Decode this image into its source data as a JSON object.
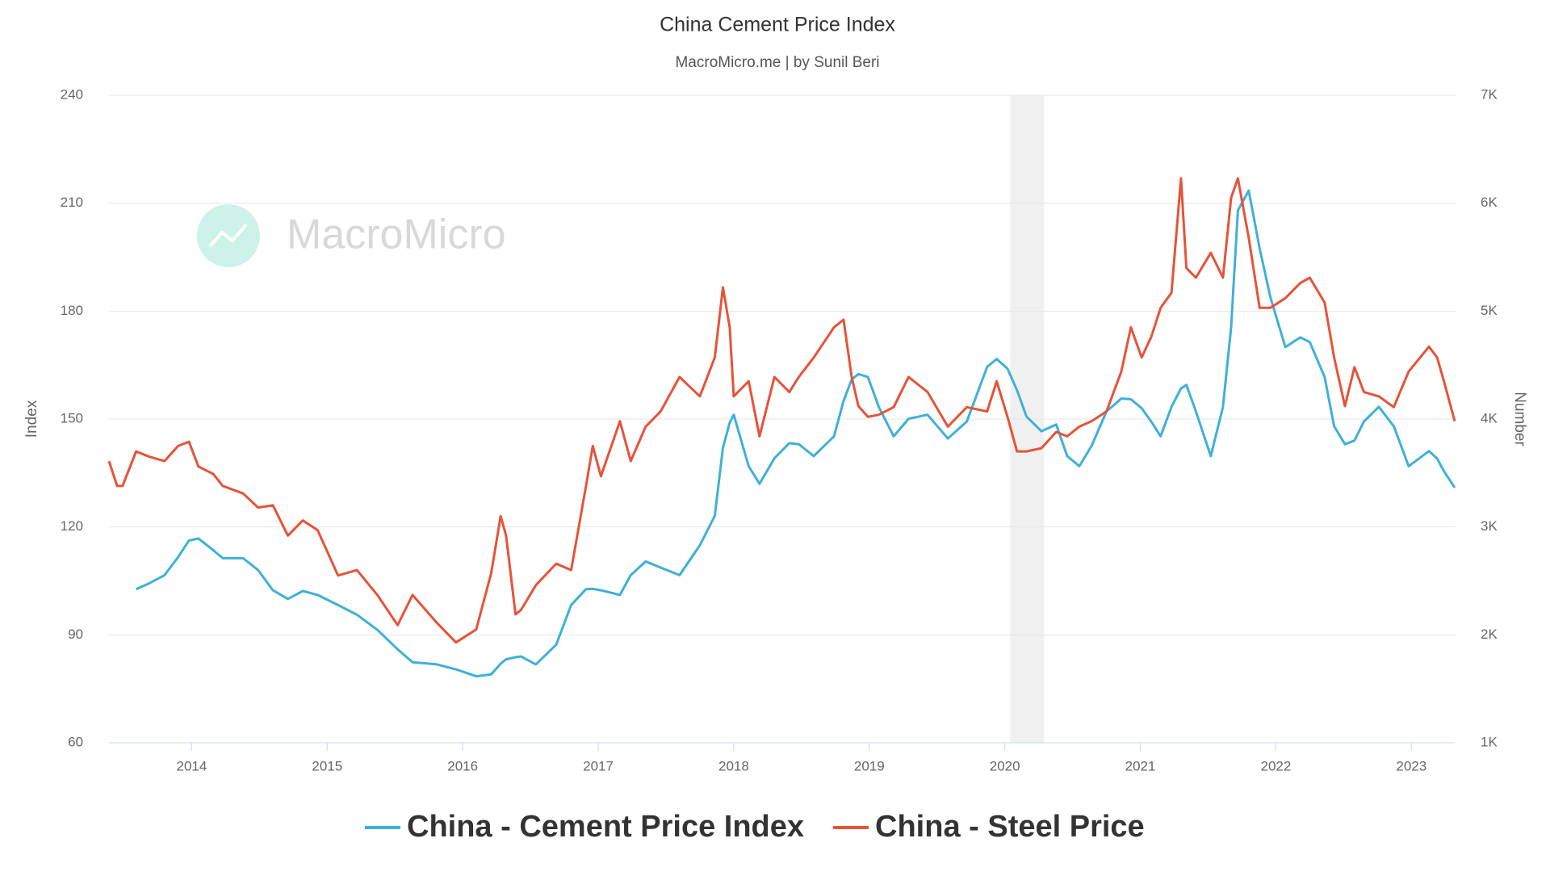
{
  "chart_data": {
    "type": "line",
    "title": "China Cement Price Index",
    "subtitle": "MacroMicro.me | by Sunil Beri",
    "watermark": "MacroMicro",
    "y_label": "Index",
    "y2_label": "Number",
    "x": [
      2013.39,
      2013.45,
      2013.49,
      2013.59,
      2013.69,
      2013.8,
      2013.9,
      2013.98,
      2014.05,
      2014.16,
      2014.23,
      2014.38,
      2014.49,
      2014.6,
      2014.71,
      2014.82,
      2014.93,
      2015.08,
      2015.22,
      2015.37,
      2015.52,
      2015.63,
      2015.81,
      2015.95,
      2016.1,
      2016.21,
      2016.28,
      2016.32,
      2016.39,
      2016.43,
      2016.54,
      2016.69,
      2016.8,
      2016.91,
      2016.96,
      2017.02,
      2017.16,
      2017.24,
      2017.35,
      2017.46,
      2017.6,
      2017.75,
      2017.86,
      2017.92,
      2017.97,
      2018.0,
      2018.11,
      2018.19,
      2018.3,
      2018.41,
      2018.48,
      2018.59,
      2018.74,
      2018.81,
      2018.87,
      2018.92,
      2018.99,
      2019.07,
      2019.18,
      2019.29,
      2019.43,
      2019.58,
      2019.72,
      2019.87,
      2019.94,
      2020.02,
      2020.09,
      2020.16,
      2020.27,
      2020.38,
      2020.46,
      2020.55,
      2020.64,
      2020.75,
      2020.86,
      2020.93,
      2021.01,
      2021.08,
      2021.15,
      2021.23,
      2021.3,
      2021.34,
      2021.41,
      2021.52,
      2021.61,
      2021.67,
      2021.72,
      2021.8,
      2021.88,
      2021.96,
      2022.07,
      2022.18,
      2022.25,
      2022.36,
      2022.43,
      2022.51,
      2022.58,
      2022.65,
      2022.76,
      2022.87,
      2022.98,
      2023.13,
      2023.19,
      2023.24,
      2023.32
    ],
    "series": [
      {
        "name": "China - Cement Price Index",
        "color": "#3fb0d8",
        "axis": "y",
        "values": [
          null,
          null,
          null,
          102.7,
          104.4,
          106.6,
          111.6,
          116.2,
          116.8,
          113.5,
          111.3,
          111.3,
          108,
          102.4,
          100,
          102.2,
          101.1,
          98.3,
          95.6,
          91.4,
          86,
          82.4,
          81.8,
          80.4,
          78.5,
          79,
          82,
          83.2,
          83.8,
          84,
          81.8,
          87.3,
          98.3,
          102.7,
          102.8,
          102.4,
          101.1,
          106.6,
          110.4,
          108.7,
          106.6,
          114.9,
          123.1,
          142,
          149,
          151.2,
          136.9,
          132,
          139.1,
          143.3,
          143,
          139.7,
          145.2,
          155,
          161,
          162.5,
          161.7,
          153.4,
          145.2,
          150.1,
          151.2,
          144.6,
          149.3,
          164.5,
          166.7,
          164,
          158,
          150.7,
          146.6,
          148.5,
          139.7,
          136.9,
          142.5,
          152.1,
          155.7,
          155.5,
          153,
          149.3,
          145.2,
          153.4,
          158.5,
          159.5,
          152.1,
          139.7,
          153.4,
          175.5,
          208,
          213.5,
          197.5,
          183.8,
          170,
          172.7,
          171.4,
          161.7,
          148,
          143,
          144,
          149.3,
          153.4,
          148,
          136.9,
          141.1,
          139,
          135.5,
          130.9
        ]
      },
      {
        "name": "China - Steel Price",
        "color": "#e5533a",
        "axis": "y2",
        "values": [
          3610,
          3380,
          3380,
          3700,
          3650,
          3610,
          3750,
          3790,
          3560,
          3490,
          3380,
          3310,
          3180,
          3200,
          2920,
          3060,
          2970,
          2550,
          2600,
          2370,
          2090,
          2370,
          2110,
          1930,
          2050,
          2570,
          3100,
          2920,
          2190,
          2230,
          2460,
          2660,
          2600,
          3380,
          3750,
          3470,
          3980,
          3610,
          3930,
          4070,
          4390,
          4210,
          4570,
          5220,
          4850,
          4210,
          4350,
          3840,
          4390,
          4250,
          4390,
          4570,
          4850,
          4920,
          4390,
          4120,
          4020,
          4040,
          4110,
          4390,
          4250,
          3930,
          4110,
          4070,
          4350,
          4020,
          3700,
          3700,
          3730,
          3880,
          3840,
          3930,
          3980,
          4070,
          4440,
          4850,
          4570,
          4760,
          5030,
          5170,
          6230,
          5400,
          5310,
          5540,
          5310,
          6050,
          6230,
          5680,
          5030,
          5030,
          5120,
          5260,
          5310,
          5080,
          4570,
          4120,
          4480,
          4250,
          4210,
          4110,
          4440,
          4670,
          4570,
          4350,
          3980
        ]
      }
    ],
    "xlim": [
      2013.39,
      2023.32
    ],
    "xticks": [
      2014,
      2015,
      2016,
      2017,
      2018,
      2019,
      2020,
      2021,
      2022,
      2023
    ],
    "ylim": [
      60,
      240
    ],
    "yticks": [
      60,
      90,
      120,
      150,
      180,
      210,
      240
    ],
    "y2lim": [
      1000,
      7000
    ],
    "y2ticks": [
      {
        "value": 1000,
        "label": "1K"
      },
      {
        "value": 2000,
        "label": "2K"
      },
      {
        "value": 3000,
        "label": "3K"
      },
      {
        "value": 4000,
        "label": "4K"
      },
      {
        "value": 5000,
        "label": "5K"
      },
      {
        "value": 6000,
        "label": "6K"
      },
      {
        "value": 7000,
        "label": "7K"
      }
    ],
    "shaded_range": [
      2020.04,
      2020.29
    ],
    "grid": true,
    "legend": "bottom"
  }
}
